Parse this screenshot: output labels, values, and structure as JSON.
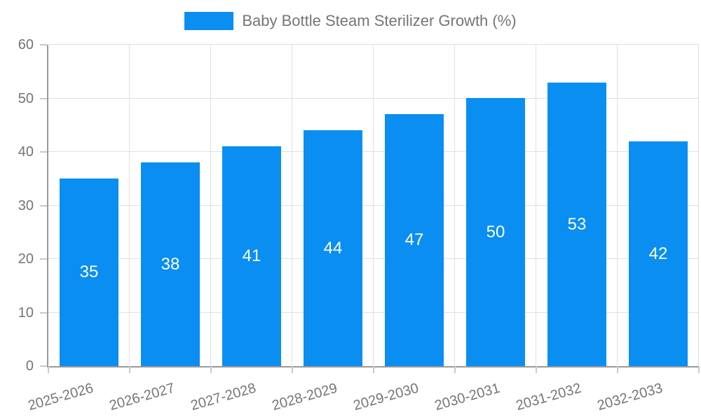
{
  "legend": {
    "label": "Baby Bottle Steam Sterilizer Growth (%)"
  },
  "chart_data": {
    "type": "bar",
    "title": "Baby Bottle Steam Sterilizer Growth (%)",
    "categories": [
      "2025-2026",
      "2026-2027",
      "2027-2028",
      "2028-2029",
      "2029-2030",
      "2030-2031",
      "2031-2032",
      "2032-2033"
    ],
    "values": [
      35,
      38,
      41,
      44,
      47,
      50,
      53,
      42
    ],
    "xlabel": "",
    "ylabel": "",
    "ylim": [
      0,
      60
    ],
    "yticks": [
      0,
      10,
      20,
      30,
      40,
      50,
      60
    ],
    "grid": true,
    "legend_position": "top-center",
    "value_labels": "inside-center"
  },
  "colors": {
    "bar": "#0b8ef2",
    "axis": "#999999",
    "gridline": "#e0e0e0",
    "tick": "#c9c9c9",
    "tick_label_text": "#757575",
    "legend_text": "#757575",
    "value_label_text": "#ffffff",
    "background": "#ffffff"
  }
}
